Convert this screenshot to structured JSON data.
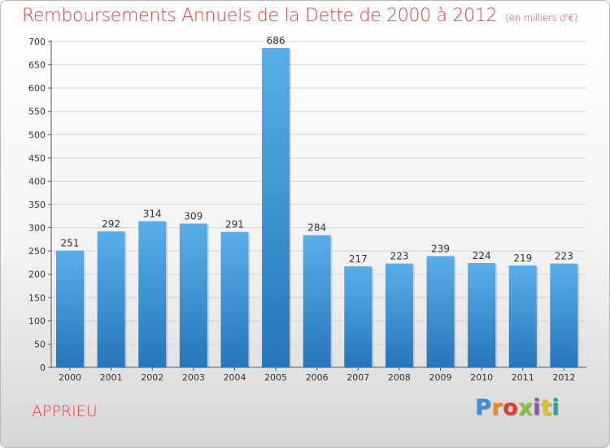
{
  "header": {
    "title": "Remboursements Annuels de la Dette de 2000 à 2012",
    "subtitle": "(en milliers d'€)"
  },
  "footer": {
    "place": "APPRIEU",
    "brand": "Proxiti",
    "brand_colors": [
      "#3a8fd8",
      "#f08a24",
      "#e13c2f",
      "#8ac23a",
      "#9b4fb6",
      "#e2c318",
      "#2fa39b"
    ]
  },
  "chart_data": {
    "type": "bar",
    "categories": [
      "2000",
      "2001",
      "2002",
      "2003",
      "2004",
      "2005",
      "2006",
      "2007",
      "2008",
      "2009",
      "2010",
      "2011",
      "2012"
    ],
    "values": [
      251,
      292,
      314,
      309,
      291,
      686,
      284,
      217,
      223,
      239,
      224,
      219,
      223
    ],
    "ylim": [
      0,
      700
    ],
    "yticks": [
      0,
      50,
      100,
      150,
      200,
      250,
      300,
      350,
      400,
      450,
      500,
      550,
      600,
      650,
      700
    ],
    "grid": true,
    "bar_color_top": "#5aaee8",
    "bar_color_bottom": "#2676b8"
  }
}
